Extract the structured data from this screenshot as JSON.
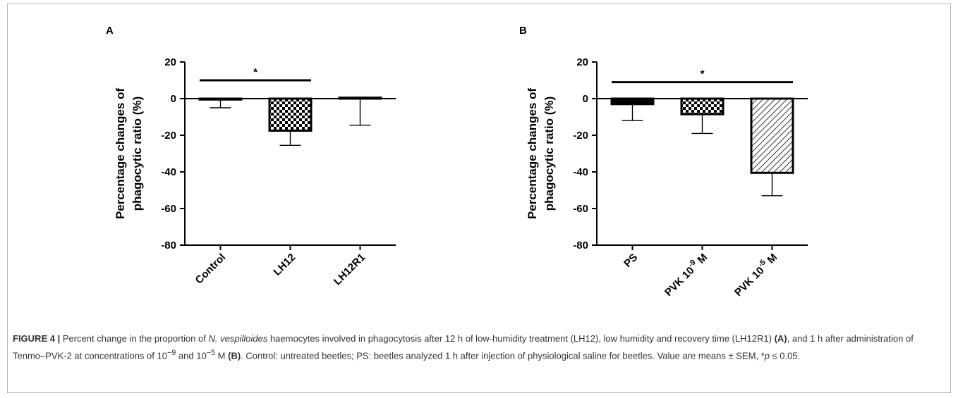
{
  "chart_data": [
    {
      "type": "bar",
      "panel_label": "A",
      "ylabel_lines": [
        "Percentage changes of",
        "phagocytic ratio (%)"
      ],
      "ylim": [
        -80,
        20
      ],
      "yticks": [
        20,
        0,
        -20,
        -40,
        -60,
        -80
      ],
      "categories": [
        "Control",
        "LH12",
        "LH12R1"
      ],
      "category_sups": [
        null,
        null,
        null
      ],
      "values": [
        -0.5,
        -17.5,
        0.5
      ],
      "errors": [
        4.5,
        8,
        15
      ],
      "patterns": [
        "solid",
        "checker",
        "solid"
      ],
      "significance": {
        "from": 0,
        "to": 1,
        "y": 10,
        "label": "*"
      },
      "grid": false,
      "legend": "none"
    },
    {
      "type": "bar",
      "panel_label": "B",
      "ylabel_lines": [
        "Percentage changes of",
        "phagocytic ratio (%)"
      ],
      "ylim": [
        -80,
        20
      ],
      "yticks": [
        20,
        0,
        -20,
        -40,
        -60,
        -80
      ],
      "categories": [
        "PS",
        "PVK 10",
        "PVK 10"
      ],
      "category_sups": [
        null,
        "-9",
        "-5"
      ],
      "category_suffixes": [
        null,
        " M",
        " M"
      ],
      "values": [
        -3,
        -8.5,
        -40.5
      ],
      "errors": [
        9,
        10.5,
        12.5
      ],
      "patterns": [
        "solid",
        "checker",
        "hatch"
      ],
      "significance": {
        "from": 0,
        "to": 2,
        "y": 9,
        "label": "*"
      },
      "grid": false,
      "legend": "none"
    }
  ],
  "caption": {
    "label": "FIGURE 4 |",
    "part1": " Percent change in the proportion of ",
    "species": "N. vespilloides",
    "part2": " haemocytes involved in phagocytosis after 12 h of low-humidity treatment (LH12), low humidity and recovery time (LH12R1) ",
    "ref_a": "(A)",
    "part3": ", and 1 h after administration of Tenmo–PVK-2 at concentrations of 10",
    "sup1": "−9",
    "part4": " and 10",
    "sup2": "−5",
    "part5": " M ",
    "ref_b": "(B)",
    "part6": ". Control: untreated beetles; PS: beetles analyzed 1 h after injection of physiological saline for beetles. Value are means ± SEM, *",
    "p_symbol": "p",
    "part7": " ≤ 0.05."
  }
}
